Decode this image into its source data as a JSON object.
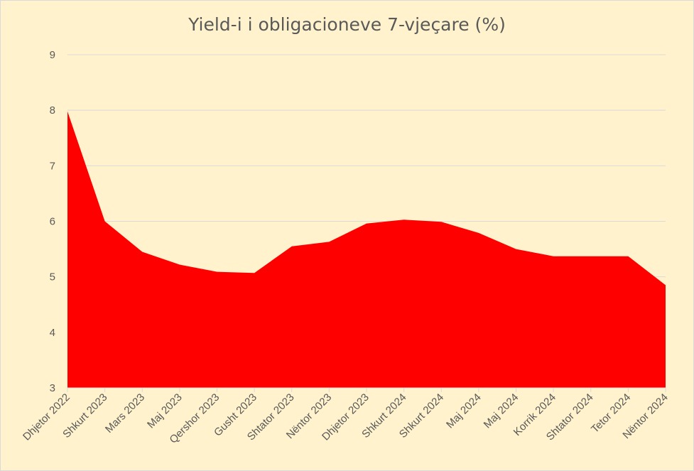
{
  "chart_data": {
    "type": "area",
    "title": "Yield-i i obligacioneve 7-vjeçare (%)",
    "xlabel": "",
    "ylabel": "",
    "categories": [
      "Dhjetor 2022",
      "Shkurt 2023",
      "Mars 2023",
      "Maj 2023",
      "Qershor 2023",
      "Gusht 2023",
      "Shtator 2023",
      "Nëntor 2023",
      "Dhjetor 2023",
      "Shkurt 2024",
      "Shkurt 2024",
      "Maj 2024",
      "Maj 2024",
      "Korrik 2024",
      "Shtator 2024",
      "Tetor 2024",
      "Nëntor 2024"
    ],
    "series": [
      {
        "values": [
          7.98,
          6.0,
          5.45,
          5.22,
          5.09,
          5.07,
          5.55,
          5.63,
          5.96,
          6.03,
          5.99,
          5.79,
          5.5,
          5.37,
          5.37,
          5.37,
          4.85
        ]
      }
    ],
    "ylim": [
      3,
      9
    ],
    "yticks": [
      "3",
      "4",
      "5",
      "6",
      "7",
      "8",
      "9"
    ],
    "grid": true,
    "legend": "none",
    "fill_color": "#ff0000",
    "grid_color": "#d9d9d9",
    "background": "#fff2cc"
  }
}
